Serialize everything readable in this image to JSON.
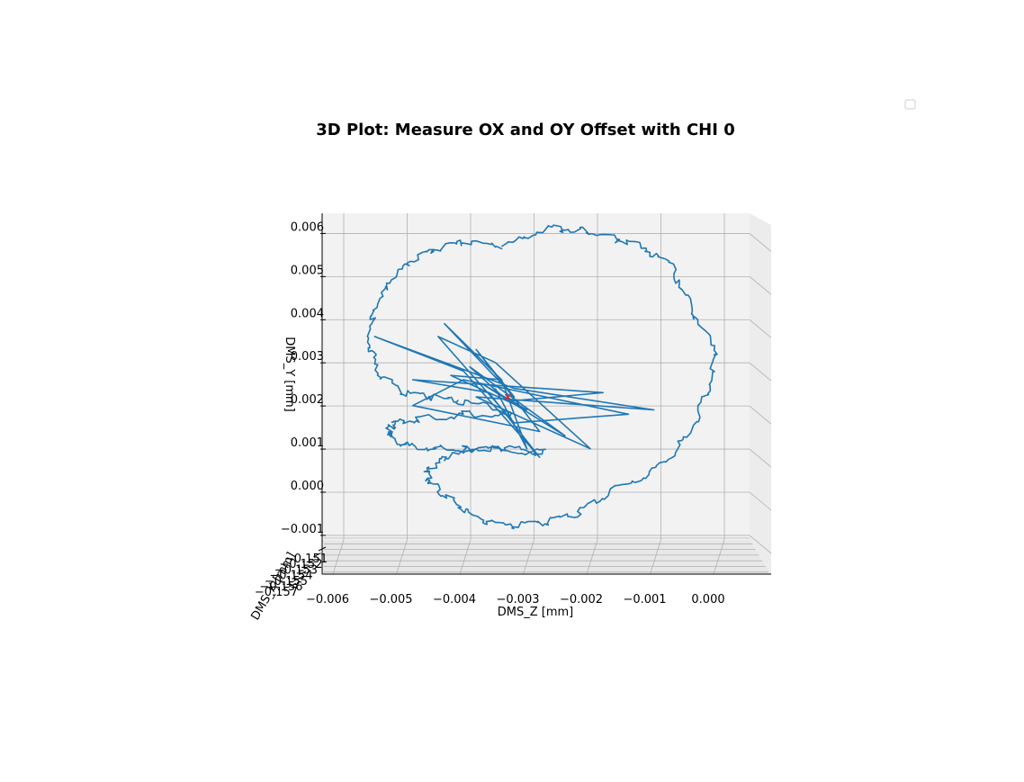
{
  "chart_data": {
    "type": "line",
    "projection": "3d",
    "title": "3D Plot: Measure OX and OY Offset with CHI 0",
    "xlabel": "DMS_Z [mm]",
    "ylabel": "DMS_Y [mm]",
    "zlabel": "DMS_X [mm]",
    "x_ticks": [
      "−0.006",
      "−0.005",
      "−0.004",
      "−0.003",
      "−0.002",
      "−0.001",
      "0.000"
    ],
    "y_ticks": [
      "−0.001",
      "0.000",
      "0.001",
      "0.002",
      "0.003",
      "0.004",
      "0.005",
      "0.006"
    ],
    "z_ticks": [
      "−0.151",
      "−0.152",
      "−0.153",
      "−0.154",
      "−0.155",
      "−0.156",
      "−0.157"
    ],
    "xlim": [
      -0.0066,
      0.0012
    ],
    "ylim": [
      -0.0012,
      0.0062
    ],
    "grid": true,
    "legend": "top-right (empty)",
    "colors": {
      "series": "#1f77b4",
      "marker": "#d62728",
      "pane": "#f2f2f2",
      "grid": "#b0b0b0"
    },
    "series": [
      {
        "points": [
          [
            -0.0032,
            0.0055
          ],
          [
            -0.0025,
            0.0059
          ],
          [
            -0.002,
            0.0059
          ],
          [
            -0.0015,
            0.0057
          ],
          [
            -0.001,
            0.0055
          ],
          [
            -0.0005,
            0.005
          ],
          [
            -0.0002,
            0.004
          ],
          [
            0.0002,
            0.003
          ],
          [
            0.0,
            0.002
          ],
          [
            -0.0003,
            0.001
          ],
          [
            -0.0008,
            0.0003
          ],
          [
            -0.0015,
            -0.0002
          ],
          [
            -0.002,
            -0.0007
          ],
          [
            -0.0025,
            -0.0009
          ],
          [
            -0.0031,
            -0.001
          ],
          [
            -0.0036,
            -0.0008
          ],
          [
            -0.004,
            -0.0004
          ],
          [
            -0.0043,
            0.0
          ],
          [
            -0.0044,
            0.0003
          ],
          [
            -0.0041,
            0.0006
          ],
          [
            -0.0036,
            0.0008
          ],
          [
            -0.0031,
            0.0008
          ],
          [
            -0.0025,
            0.0007
          ],
          [
            -0.0033,
            0.0008
          ],
          [
            -0.0038,
            0.0008
          ],
          [
            -0.0043,
            0.0008
          ],
          [
            -0.0048,
            0.0009
          ],
          [
            -0.005,
            0.0012
          ],
          [
            -0.0049,
            0.0014
          ],
          [
            -0.0045,
            0.0015
          ],
          [
            -0.0038,
            0.0016
          ],
          [
            -0.003,
            0.0016
          ],
          [
            -0.0038,
            0.0019
          ],
          [
            -0.0043,
            0.002
          ],
          [
            -0.0048,
            0.0021
          ],
          [
            -0.0052,
            0.0027
          ],
          [
            -0.0053,
            0.0035
          ],
          [
            -0.0051,
            0.0044
          ],
          [
            -0.0047,
            0.0051
          ],
          [
            -0.0043,
            0.0054
          ],
          [
            -0.0038,
            0.0056
          ],
          [
            -0.0032,
            0.0055
          ]
        ]
      },
      {
        "points": [
          [
            -0.0032,
            0.0024
          ],
          [
            -0.0041,
            0.0037
          ],
          [
            -0.003,
            0.002
          ],
          [
            -0.0036,
            0.0031
          ],
          [
            -0.0026,
            0.0012
          ],
          [
            -0.0046,
            0.0018
          ],
          [
            -0.0038,
            0.0024
          ],
          [
            -0.0012,
            0.0016
          ],
          [
            -0.003,
            0.0014
          ],
          [
            -0.0042,
            0.0034
          ],
          [
            -0.0033,
            0.0028
          ],
          [
            -0.0018,
            0.0008
          ],
          [
            -0.0036,
            0.002
          ],
          [
            -0.0008,
            0.0017
          ],
          [
            -0.003,
            0.0022
          ],
          [
            -0.0052,
            0.0034
          ],
          [
            -0.0038,
            0.0026
          ],
          [
            -0.0026,
            0.0006
          ],
          [
            -0.0034,
            0.0021
          ],
          [
            -0.0046,
            0.0024
          ],
          [
            -0.0016,
            0.0021
          ],
          [
            -0.0031,
            0.0019
          ],
          [
            -0.0037,
            0.0027
          ],
          [
            -0.0022,
            0.0011
          ],
          [
            -0.0035,
            0.0023
          ],
          [
            -0.0028,
            0.0017
          ],
          [
            -0.004,
            0.0025
          ],
          [
            -0.0032,
            0.0024
          ],
          [
            -0.0028,
            0.0008
          ],
          [
            -0.0033,
            0.0022
          ]
        ]
      }
    ],
    "center_marker": {
      "x": -0.0031,
      "y": 0.002,
      "symbol": "x"
    }
  }
}
